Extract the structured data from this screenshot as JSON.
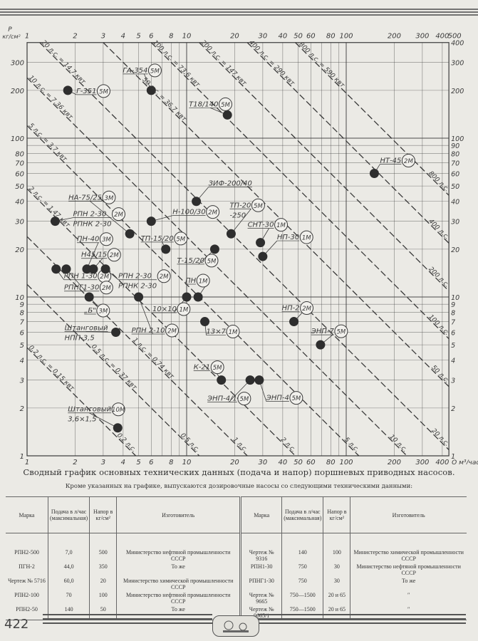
{
  "chart_data": {
    "type": "scatter",
    "x_scale": "log",
    "y_scale": "log",
    "xlim": [
      1,
      440
    ],
    "ylim": [
      1,
      400
    ],
    "grid": true,
    "xlabel": "Q м³/час",
    "ylabel": "P кг/см²",
    "x_ticks_top": [
      "1",
      "2",
      "3",
      "4",
      "5",
      "6",
      "8",
      "10",
      "20",
      "30",
      "40",
      "50",
      "60",
      "80",
      "100",
      "200",
      "300",
      "400",
      "500"
    ],
    "x_ticks_bottom": [
      "1",
      "2",
      "3",
      "4",
      "5",
      "6",
      "8",
      "10",
      "20",
      "30",
      "40",
      "50",
      "60",
      "80",
      "100",
      "200",
      "300",
      "400"
    ],
    "y_ticks_left": [
      "1",
      "2",
      "3",
      "4",
      "5",
      "6",
      "7",
      "8",
      "9",
      "10",
      "20",
      "30",
      "40",
      "50",
      "60",
      "70",
      "80",
      "100",
      "200",
      "300"
    ],
    "y_ticks_right": [
      "1",
      "2",
      "3",
      "4",
      "5",
      "6",
      "7",
      "8",
      "9",
      "10",
      "20",
      "30",
      "40",
      "50",
      "60",
      "70",
      "80",
      "90",
      "100",
      "200",
      "300",
      "400"
    ],
    "power_lines": [
      {
        "hp": 0.2,
        "label_full": "0,2 л.с. = 0,15 квт",
        "label_short": "0,2 л.с."
      },
      {
        "hp": 0.5,
        "label_full": "0,5 л.с. = 0,37 квт",
        "label_short": "0,5 л.с."
      },
      {
        "hp": 1,
        "label_full": "1 л.с. = 0,74 квт",
        "label_short": "1 л.с."
      },
      {
        "hp": 2,
        "label_full": "2 л.с. = 1,47 квт",
        "label_short": "2 л.с."
      },
      {
        "hp": 5,
        "label_full": "5 л.с. = 3,7 квт",
        "label_short": "5 л.с."
      },
      {
        "hp": 10,
        "label_full": "10 л.с. = 7,36 квт",
        "label_short": "10 л.с."
      },
      {
        "hp": 20,
        "label_full": "20 л.с. = 14,7 квт",
        "label_short": "20 л.с."
      },
      {
        "hp": 50,
        "label_full": "50 л.с. = 36,7 квт",
        "label_short": "50 л.с."
      },
      {
        "hp": 100,
        "label_full": "100 л.с. = 73,6 квт",
        "label_short": "100 л.с."
      },
      {
        "hp": 200,
        "label_full": "200 л.с. = 147 квт",
        "label_short": "200 л.с."
      },
      {
        "hp": 400,
        "label_full": "400 л.с. = 290 квт",
        "label_short": "400 л.с."
      },
      {
        "hp": 800,
        "label_full": "800 л.с. = 590 квт",
        "label_short": "800 л.с."
      }
    ],
    "points": [
      {
        "labels": [
          "Г-351"
        ],
        "mark": "5М",
        "Q": 1.8,
        "P": 200
      },
      {
        "labels": [
          "ГА-354"
        ],
        "mark": "5М",
        "Q": 6,
        "P": 200
      },
      {
        "labels": [
          "Т18/140"
        ],
        "mark": "5М",
        "Q": 18,
        "P": 140
      },
      {
        "labels": [
          "ЗИФ-200/40"
        ],
        "mark": "",
        "Q": 11.5,
        "P": 40
      },
      {
        "labels": [
          "Н-100/30"
        ],
        "mark": "2М",
        "Q": 6,
        "P": 30
      },
      {
        "labels": [
          "РПН 2-30",
          "РПНК 2-30"
        ],
        "mark": "2М",
        "Q": 1.5,
        "P": 30
      },
      {
        "labels": [
          "НА-75/25"
        ],
        "mark": "3М",
        "Q": 4.4,
        "P": 25
      },
      {
        "labels": [
          "ТП-20",
          "-250"
        ],
        "mark": "5М",
        "Q": 19,
        "P": 25
      },
      {
        "labels": [
          "СНТ-30"
        ],
        "mark": "1М",
        "Q": 29,
        "P": 22
      },
      {
        "labels": [
          "НП-30"
        ],
        "mark": "1М",
        "Q": 30,
        "P": 18
      },
      {
        "labels": [
          "Т-15/20"
        ],
        "mark": "5М",
        "Q": 15,
        "P": 20
      },
      {
        "labels": [
          "ТП-15/20"
        ],
        "mark": "5М",
        "Q": 7.4,
        "P": 20
      },
      {
        "labels": [
          "РПН 1-30"
        ],
        "mark": "2М",
        "Q": 1.52,
        "P": 15
      },
      {
        "labels": [
          "РПНГ1-30"
        ],
        "mark": "2М",
        "Q": 1.76,
        "P": 15
      },
      {
        "labels": [
          "ПН-40"
        ],
        "mark": "3М",
        "Q": 2.37,
        "P": 15
      },
      {
        "labels": [
          "Н45/15"
        ],
        "mark": "2М",
        "Q": 2.6,
        "P": 15
      },
      {
        "labels": [
          "РПН 2-30",
          "РПНК 2-30"
        ],
        "mark": "2М",
        "Q": 3.1,
        "P": 15
      },
      {
        "labels": [
          "„Б\""
        ],
        "mark": "3М",
        "Q": 2.45,
        "P": 10
      },
      {
        "labels": [
          "РПН 2-10"
        ],
        "mark": "2М",
        "Q": 5,
        "P": 10
      },
      {
        "labels": [
          "10×10"
        ],
        "mark": "1М",
        "Q": 10,
        "P": 10
      },
      {
        "labels": [
          "ПН"
        ],
        "mark": "1М",
        "Q": 11.8,
        "P": 10
      },
      {
        "labels": [
          "13×7"
        ],
        "mark": "1М",
        "Q": 13,
        "P": 7
      },
      {
        "labels": [
          "Штанговый",
          "НПП-3,5"
        ],
        "mark": "",
        "Q": 3.6,
        "P": 6
      },
      {
        "labels": [
          "Штанговый",
          "3,6×1,5"
        ],
        "mark": "10М",
        "Q": 3.7,
        "P": 1.5
      },
      {
        "labels": [
          "К-21"
        ],
        "mark": "5М",
        "Q": 16.5,
        "P": 3
      },
      {
        "labels": [
          "ЭНП-4/1"
        ],
        "mark": "5М",
        "Q": 25,
        "P": 3
      },
      {
        "labels": [
          "ЭНП-4"
        ],
        "mark": "5М",
        "Q": 28.5,
        "P": 3
      },
      {
        "labels": [
          "НП-2"
        ],
        "mark": "2М",
        "Q": 47,
        "P": 7
      },
      {
        "labels": [
          "ЭНП-7"
        ],
        "mark": "5М",
        "Q": 69,
        "P": 5
      },
      {
        "labels": [
          "НТ-45"
        ],
        "mark": "2М",
        "Q": 150,
        "P": 60
      }
    ]
  },
  "caption": "Сводный график основных технических данных (подача и напор) поршневых приводных насосов.",
  "subcaption": "Кроме указанных на графике, выпускаются дозировочные насосы со следующими техническими данными:",
  "table": {
    "headers": [
      "Марка",
      "Подача в л/час (максимальная)",
      "Напор в кг/см²",
      "Изготовитель"
    ],
    "left": [
      [
        "РПН2-500",
        "7,0",
        "500",
        "Министерство нефтяной промышленности СССР"
      ],
      [
        "ПГН-2",
        "44,0",
        "350",
        "То же"
      ],
      [
        "Чертеж № 5716",
        "60,0",
        "20",
        "Министерство химической промышленности СССР"
      ],
      [
        "РПН2-100",
        "70",
        "100",
        "Министерство нефтяной промышленности СССР"
      ],
      [
        "РПН2-50",
        "140",
        "50",
        "То же"
      ]
    ],
    "right": [
      [
        "Чертеж № 9316",
        "140",
        "100",
        "Министерство химической промышленности СССР"
      ],
      [
        "РПН1-30",
        "750",
        "30",
        "Министерство нефтяной промышленности СССР"
      ],
      [
        "РПНГ1-30",
        "750",
        "30",
        "То же"
      ],
      [
        "Чертеж № 9665",
        "750—1500",
        "20 и 65",
        "″"
      ],
      [
        "Чертеж № 9665/1",
        "750—1500",
        "20 и 65",
        "″"
      ]
    ]
  },
  "page_number": "422"
}
